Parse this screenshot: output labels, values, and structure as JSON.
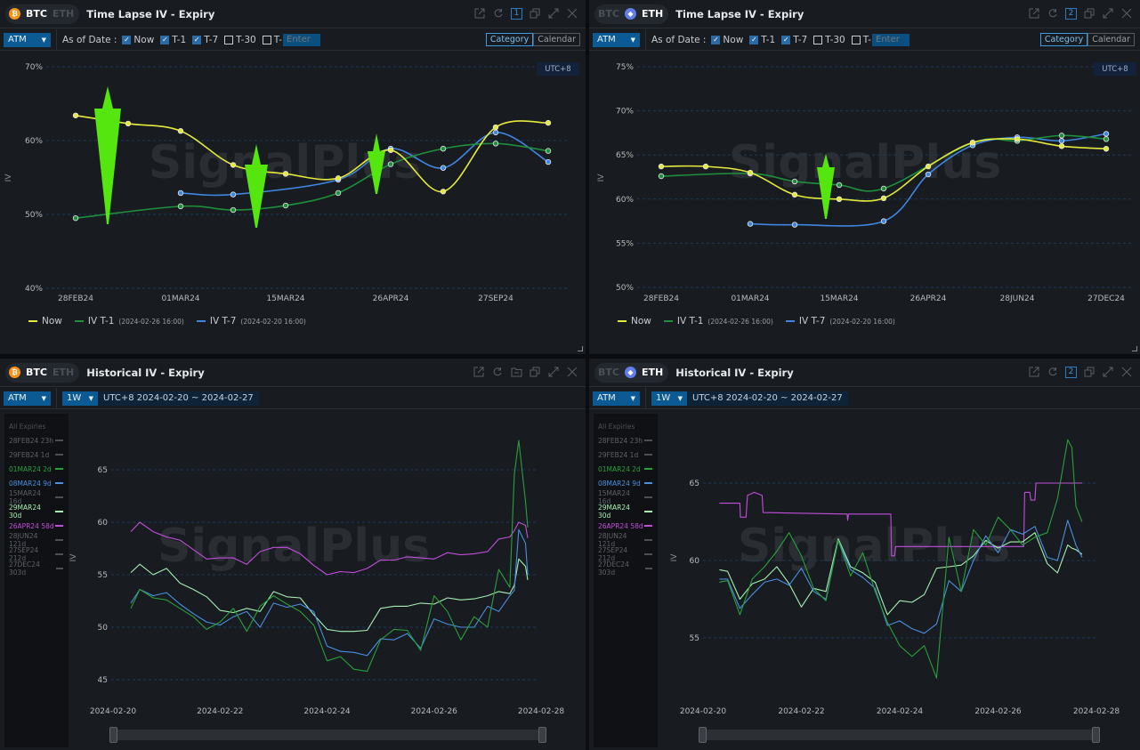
{
  "watermark": "SignalPlus",
  "panels": [
    {
      "coins": [
        "BTC",
        "ETH"
      ],
      "active_coin": "BTC",
      "title": "Time Lapse IV - Expiry",
      "badge": "1",
      "moneyness": "ATM",
      "as_of_label": "As of Date :",
      "checks": [
        {
          "label": "Now",
          "checked": true
        },
        {
          "label": "T-1",
          "checked": true
        },
        {
          "label": "T-7",
          "checked": true
        },
        {
          "label": "T-30",
          "checked": false
        },
        {
          "label": "T-",
          "checked": false
        }
      ],
      "enter_placeholder": "Enter",
      "view_buttons": [
        "Category",
        "Calendar"
      ],
      "active_view": "Category",
      "timezone": "UTC+8"
    },
    {
      "coins": [
        "BTC",
        "ETH"
      ],
      "active_coin": "ETH",
      "title": "Time Lapse IV - Expiry",
      "badge": "2",
      "moneyness": "ATM",
      "as_of_label": "As of Date :",
      "checks": [
        {
          "label": "Now",
          "checked": true
        },
        {
          "label": "T-1",
          "checked": true
        },
        {
          "label": "T-7",
          "checked": true
        },
        {
          "label": "T-30",
          "checked": false
        },
        {
          "label": "T-",
          "checked": false
        }
      ],
      "enter_placeholder": "Enter",
      "view_buttons": [
        "Category",
        "Calendar"
      ],
      "active_view": "Category",
      "timezone": "UTC+8"
    },
    {
      "coins": [
        "BTC",
        "ETH"
      ],
      "active_coin": "BTC",
      "title": "Historical IV - Expiry",
      "moneyness": "ATM",
      "period": "1W",
      "range": "UTC+8 2024-02-20 ~ 2024-02-27"
    },
    {
      "coins": [
        "BTC",
        "ETH"
      ],
      "active_coin": "ETH",
      "title": "Historical IV - Expiry",
      "badge": "2",
      "moneyness": "ATM",
      "period": "1W",
      "range": "UTC+8 2024-02-20 ~ 2024-02-27"
    }
  ],
  "expiries": [
    {
      "label": "All Expiries",
      "color": null
    },
    {
      "label": "28FEB24 23h",
      "color": null
    },
    {
      "label": "29FEB24 1d",
      "color": null
    },
    {
      "label": "01MAR24 2d",
      "color": "#2aa03c"
    },
    {
      "label": "08MAR24 9d",
      "color": "#4a8fe0"
    },
    {
      "label": "15MAR24 16d",
      "color": null
    },
    {
      "label": "29MAR24 30d",
      "color": "#a6f0b4"
    },
    {
      "label": "26APR24 58d",
      "color": "#c24fdc"
    },
    {
      "label": "28JUN24 121d",
      "color": null
    },
    {
      "label": "27SEP24 212d",
      "color": null
    },
    {
      "label": "27DEC24 303d",
      "color": null
    }
  ],
  "chart_data": [
    {
      "type": "line",
      "ylabel": "IV",
      "grid": true,
      "legend": "bottom-left",
      "categories": [
        "28FEB24",
        "29FEB24",
        "01MAR24",
        "08MAR24",
        "15MAR24",
        "29MAR24",
        "26APR24",
        "28JUN24",
        "27SEP24",
        "27DEC24"
      ],
      "x_tick_labels": [
        "28FEB24",
        "01MAR24",
        "15MAR24",
        "26APR24",
        "27SEP24"
      ],
      "y_ticks": [
        "40%",
        "50%",
        "60%",
        "70%"
      ],
      "ylim": [
        40,
        70
      ],
      "series": [
        {
          "name": "Now",
          "as_of": "",
          "color": "#e4ea3c",
          "values": [
            63.4,
            62.3,
            61.3,
            56.7,
            55.5,
            54.9,
            58.7,
            53.1,
            61.8,
            62.4
          ]
        },
        {
          "name": "IV T-1",
          "as_of": "(2024-02-26 16:00)",
          "color": "#1f8f3c",
          "values": [
            49.5,
            null,
            51.1,
            50.6,
            51.2,
            52.9,
            56.8,
            58.9,
            59.6,
            58.6
          ]
        },
        {
          "name": "IV T-7",
          "as_of": "(2024-02-20 16:00)",
          "color": "#3f86e0",
          "values": [
            null,
            null,
            52.9,
            52.7,
            null,
            54.7,
            58.9,
            56.3,
            61.1,
            57.1
          ]
        }
      ]
    },
    {
      "type": "line",
      "ylabel": "IV",
      "grid": true,
      "legend": "bottom-left",
      "categories": [
        "28FEB24",
        "29FEB24",
        "01MAR24",
        "08MAR24",
        "15MAR24",
        "29MAR24",
        "26APR24",
        "31MAY24",
        "28JUN24",
        "27SEP24",
        "27DEC24"
      ],
      "x_tick_labels": [
        "28FEB24",
        "01MAR24",
        "15MAR24",
        "26APR24",
        "28JUN24",
        "27DEC24"
      ],
      "y_ticks": [
        "50%",
        "55%",
        "60%",
        "65%",
        "70%",
        "75%"
      ],
      "ylim": [
        50,
        75
      ],
      "series": [
        {
          "name": "Now",
          "as_of": "",
          "color": "#e4ea3c",
          "values": [
            63.7,
            63.7,
            63.0,
            60.5,
            60.0,
            60.1,
            63.7,
            66.4,
            66.8,
            66.0,
            65.7
          ]
        },
        {
          "name": "IV T-1",
          "as_of": "(2024-02-26 16:00)",
          "color": "#1f8f3c",
          "values": [
            62.6,
            null,
            62.9,
            62.0,
            61.6,
            61.2,
            null,
            66.4,
            66.6,
            67.2,
            66.8
          ]
        },
        {
          "name": "IV T-7",
          "as_of": "(2024-02-20 16:00)",
          "color": "#3f86e0",
          "values": [
            null,
            null,
            57.2,
            57.1,
            null,
            57.5,
            62.8,
            66.1,
            67.0,
            66.6,
            67.4
          ]
        }
      ]
    },
    {
      "type": "line",
      "ylabel": "IV",
      "grid": true,
      "x_tick_labels": [
        "2024-02-20",
        "2024-02-22",
        "2024-02-24",
        "2024-02-26",
        "2024-02-28"
      ],
      "y_ticks": [
        "45",
        "50",
        "55",
        "60",
        "65"
      ],
      "x": [
        "2024-02-20 08:00",
        "2024-02-20 12:00",
        "2024-02-20 18:00",
        "2024-02-21 00:00",
        "2024-02-21 06:00",
        "2024-02-21 12:00",
        "2024-02-21 18:00",
        "2024-02-22 00:00",
        "2024-02-22 06:00",
        "2024-02-22 12:00",
        "2024-02-22 18:00",
        "2024-02-23 00:00",
        "2024-02-23 06:00",
        "2024-02-23 12:00",
        "2024-02-23 18:00",
        "2024-02-24 00:00",
        "2024-02-24 06:00",
        "2024-02-24 12:00",
        "2024-02-24 18:00",
        "2024-02-25 00:00",
        "2024-02-25 06:00",
        "2024-02-25 12:00",
        "2024-02-25 18:00",
        "2024-02-26 00:00",
        "2024-02-26 06:00",
        "2024-02-26 12:00",
        "2024-02-26 18:00",
        "2024-02-27 00:00",
        "2024-02-27 05:00",
        "2024-02-27 10:00",
        "2024-02-27 12:00",
        "2024-02-27 14:00",
        "2024-02-27 17:00",
        "2024-02-27 18:00"
      ],
      "series": [
        {
          "name": "26APR24 58d",
          "color": "#c24fdc",
          "values": [
            59.1,
            60.0,
            59.1,
            58.6,
            58.3,
            57.4,
            56.5,
            56.6,
            56.6,
            56.0,
            57.2,
            57.6,
            57.6,
            57.0,
            55.9,
            55.0,
            55.3,
            55.2,
            55.6,
            56.4,
            56.4,
            56.7,
            56.6,
            56.5,
            57.1,
            56.9,
            57.0,
            57.2,
            58.4,
            58.6,
            59.2,
            60.0,
            59.7,
            58.5
          ]
        },
        {
          "name": "29MAR24 30d",
          "color": "#a6f0b4",
          "values": [
            55.2,
            56.0,
            55.0,
            55.6,
            54.2,
            53.6,
            52.9,
            51.6,
            51.4,
            51.8,
            51.5,
            53.4,
            52.9,
            52.8,
            51.2,
            49.8,
            49.6,
            49.6,
            49.7,
            51.8,
            52.0,
            52.0,
            52.3,
            52.2,
            52.8,
            52.6,
            52.7,
            53.0,
            53.4,
            53.2,
            54.0,
            56.5,
            55.8,
            54.5
          ]
        },
        {
          "name": "08MAR24 9d",
          "color": "#4a8fe0",
          "values": [
            52.3,
            53.6,
            53.0,
            53.3,
            52.2,
            51.3,
            50.5,
            50.2,
            51.0,
            51.5,
            50.0,
            52.3,
            51.9,
            52.2,
            51.5,
            48.2,
            47.7,
            47.6,
            47.3,
            48.9,
            48.8,
            49.4,
            48.0,
            50.8,
            50.3,
            50.0,
            50.0,
            52.0,
            51.5,
            53.0,
            53.5,
            59.3,
            58.0,
            55.0
          ]
        },
        {
          "name": "01MAR24 2d",
          "color": "#2aa03c",
          "values": [
            51.8,
            53.6,
            52.8,
            52.6,
            51.8,
            51.0,
            49.8,
            50.5,
            51.8,
            49.6,
            52.0,
            53.0,
            52.2,
            51.5,
            50.2,
            46.8,
            47.2,
            46.0,
            45.8,
            48.8,
            49.8,
            49.7,
            47.8,
            53.0,
            51.5,
            48.8,
            51.0,
            50.0,
            55.5,
            53.8,
            64.5,
            67.8,
            62.0,
            59.5
          ]
        }
      ]
    },
    {
      "type": "line",
      "ylabel": "IV",
      "grid": true,
      "x_tick_labels": [
        "2024-02-20",
        "2024-02-22",
        "2024-02-24",
        "2024-02-26",
        "2024-02-28"
      ],
      "y_ticks": [
        "55",
        "60",
        "65"
      ],
      "x": [
        "2024-02-20 08:00",
        "2024-02-20 12:00",
        "2024-02-20 18:00",
        "2024-02-21 00:00",
        "2024-02-21 06:00",
        "2024-02-21 12:00",
        "2024-02-21 18:00",
        "2024-02-22 00:00",
        "2024-02-22 06:00",
        "2024-02-22 12:00",
        "2024-02-22 18:00",
        "2024-02-23 00:00",
        "2024-02-23 06:00",
        "2024-02-23 12:00",
        "2024-02-23 18:00",
        "2024-02-24 00:00",
        "2024-02-24 06:00",
        "2024-02-24 12:00",
        "2024-02-24 18:00",
        "2024-02-25 00:00",
        "2024-02-25 06:00",
        "2024-02-25 12:00",
        "2024-02-25 18:00",
        "2024-02-26 00:00",
        "2024-02-26 06:00",
        "2024-02-26 12:00",
        "2024-02-26 18:00",
        "2024-02-27 00:00",
        "2024-02-27 05:00",
        "2024-02-27 10:00",
        "2024-02-27 12:00",
        "2024-02-27 14:00",
        "2024-02-27 17:00"
      ],
      "series": [
        {
          "name": "26APR24 58d",
          "color": "#c24fdc",
          "x": [
            "2024-02-20 08:00",
            "2024-02-20 18:00",
            "2024-02-20 18:15",
            "2024-02-20 21:00",
            "2024-02-20 21:40",
            "2024-02-21 01:00",
            "2024-02-21 04:50",
            "2024-02-21 05:20",
            "2024-02-22 22:20",
            "2024-02-22 22:35",
            "2024-02-22 23:00",
            "2024-02-23 19:40",
            "2024-02-23 20:00",
            "2024-02-23 21:30",
            "2024-02-23 22:00",
            "2024-02-26 12:30",
            "2024-02-26 13:00",
            "2024-02-26 15:30",
            "2024-02-26 16:00",
            "2024-02-26 18:00",
            "2024-02-26 18:30",
            "2024-02-27 17:00"
          ],
          "values": [
            63.7,
            63.7,
            62.8,
            62.8,
            64.2,
            64.4,
            64.2,
            63.1,
            63.0,
            62.6,
            63.0,
            63.0,
            60.3,
            60.3,
            60.9,
            60.9,
            64.4,
            64.4,
            63.9,
            63.9,
            65.0,
            65.0
          ]
        },
        {
          "name": "29MAR24 30d",
          "color": "#a6f0b4",
          "values": [
            59.4,
            59.3,
            57.5,
            58.5,
            58.8,
            59.6,
            58.5,
            57.0,
            58.2,
            58.0,
            61.4,
            59.6,
            59.2,
            58.6,
            56.5,
            57.4,
            57.3,
            57.8,
            59.5,
            59.6,
            59.7,
            60.3,
            61.3,
            60.8,
            61.2,
            61.2,
            61.8,
            59.8,
            59.2,
            61.0,
            60.8,
            60.7,
            60.4
          ]
        },
        {
          "name": "08MAR24 9d",
          "color": "#4a8fe0",
          "values": [
            58.8,
            58.8,
            56.9,
            57.8,
            58.6,
            58.8,
            58.4,
            59.5,
            58.0,
            57.5,
            61.3,
            59.4,
            58.9,
            58.2,
            55.8,
            56.1,
            55.6,
            55.3,
            55.9,
            58.7,
            58.0,
            60.0,
            61.6,
            60.5,
            62.0,
            61.7,
            62.2,
            60.2,
            60.0,
            62.6,
            61.8,
            61.0,
            60.2
          ]
        },
        {
          "name": "01MAR24 2d",
          "color": "#2aa03c",
          "values": [
            58.6,
            58.7,
            56.5,
            58.8,
            59.6,
            60.6,
            61.8,
            60.3,
            58.2,
            57.4,
            61.3,
            59.0,
            60.5,
            58.0,
            56.0,
            54.5,
            53.8,
            54.5,
            52.4,
            61.5,
            58.0,
            62.0,
            61.0,
            62.8,
            62.0,
            61.0,
            61.5,
            61.8,
            64.0,
            67.8,
            67.3,
            63.5,
            62.5
          ]
        }
      ]
    }
  ]
}
